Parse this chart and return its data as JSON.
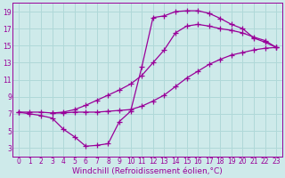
{
  "bg_color": "#ceeaea",
  "grid_color": "#b0d8d8",
  "line_color": "#990099",
  "marker": "+",
  "markersize": 4,
  "linewidth": 0.9,
  "xlabel": "Windchill (Refroidissement éolien,°C)",
  "xlabel_fontsize": 6.5,
  "tick_fontsize": 5.5,
  "xlim": [
    -0.5,
    23.5
  ],
  "ylim": [
    2,
    20
  ],
  "xticks": [
    0,
    1,
    2,
    3,
    4,
    5,
    6,
    7,
    8,
    9,
    10,
    11,
    12,
    13,
    14,
    15,
    16,
    17,
    18,
    19,
    20,
    21,
    22,
    23
  ],
  "yticks": [
    3,
    5,
    7,
    9,
    11,
    13,
    15,
    17,
    19
  ],
  "curve1_x": [
    0,
    1,
    2,
    3,
    4,
    5,
    6,
    7,
    8,
    9,
    10,
    11,
    12,
    13,
    14,
    15,
    16,
    17,
    18,
    19,
    20,
    21,
    22,
    23
  ],
  "curve1_y": [
    7.2,
    7.0,
    6.8,
    6.5,
    5.2,
    4.3,
    3.2,
    3.3,
    3.5,
    6.1,
    7.3,
    12.5,
    18.3,
    18.5,
    19.0,
    19.1,
    19.1,
    18.8,
    18.2,
    17.5,
    17.0,
    15.9,
    15.4,
    14.8
  ],
  "curve2_x": [
    0,
    1,
    2,
    3,
    4,
    5,
    6,
    7,
    8,
    9,
    10,
    11,
    12,
    13,
    14,
    15,
    16,
    17,
    18,
    19,
    20,
    21,
    22,
    23
  ],
  "curve2_y": [
    7.2,
    7.2,
    7.2,
    7.1,
    7.1,
    7.2,
    7.2,
    7.2,
    7.3,
    7.4,
    7.5,
    7.9,
    8.5,
    9.2,
    10.2,
    11.2,
    12.0,
    12.8,
    13.4,
    13.9,
    14.2,
    14.5,
    14.7,
    14.8
  ],
  "curve3_x": [
    3,
    4,
    5,
    6,
    7,
    8,
    9,
    10,
    11,
    12,
    13,
    14,
    15,
    16,
    17,
    18,
    19,
    20,
    21,
    22,
    23
  ],
  "curve3_y": [
    7.1,
    7.2,
    7.5,
    8.0,
    8.6,
    9.2,
    9.8,
    10.5,
    11.5,
    13.0,
    14.5,
    16.5,
    17.3,
    17.5,
    17.3,
    17.0,
    16.8,
    16.5,
    16.0,
    15.6,
    14.8
  ]
}
